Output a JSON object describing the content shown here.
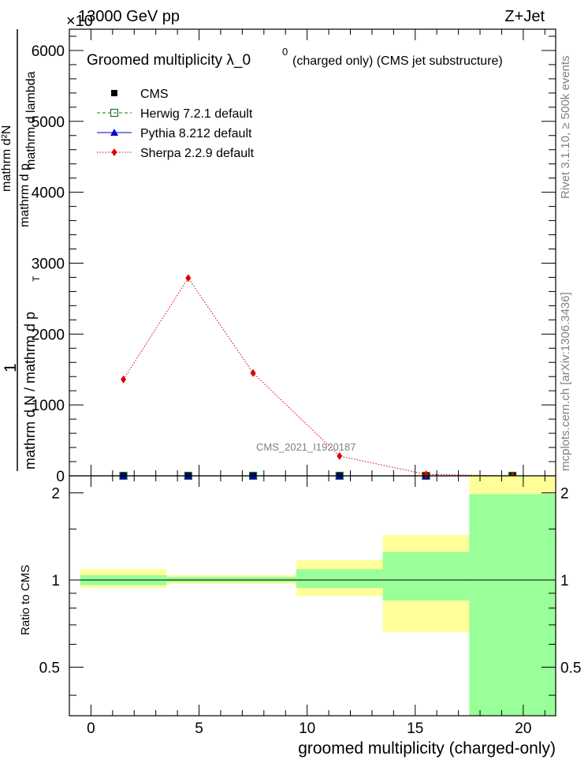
{
  "header": {
    "left": "13000 GeV pp",
    "right": "Z+Jet",
    "exponent": "×10"
  },
  "side": {
    "rivet": "Rivet 3.1.10, ≥ 500k events",
    "mcplots": "mcplots.cern.ch [arXiv:1306.3436]"
  },
  "chart_data": [
    {
      "type": "line",
      "title": "Groomed multiplicity  λ_0",
      "title_sup": "0",
      "title_rest": "(charged only) (CMS jet substructure)",
      "ylabel_num": "1",
      "ylabel_den": "mathrm d N / mathrm d p",
      "ylabel_sub": "T",
      "ylabel_d2_num": "mathrm d²N",
      "ylabel_d2_den": "mathrm d p",
      "ylabel_d2_tail": "mathrm d lambda",
      "ylim": [
        0,
        6300
      ],
      "yticks": [
        0,
        1000,
        2000,
        3000,
        4000,
        5000,
        6000
      ],
      "ytick_labels": [
        "0",
        "1000",
        "2000",
        "3000",
        "4000",
        "5000",
        "6000"
      ],
      "xlim": [
        -1,
        21.5
      ],
      "x": [
        1.5,
        4.5,
        7.5,
        11.5,
        15.5,
        19.5
      ],
      "series": [
        {
          "name": "CMS",
          "marker": "square",
          "color": "#000000",
          "values": [
            0,
            0,
            0,
            0,
            0,
            0
          ]
        },
        {
          "name": "Herwig 7.2.1 default",
          "marker": "open-square",
          "color": "#1a7a1a",
          "values": [
            0,
            0,
            0,
            0,
            0,
            0
          ]
        },
        {
          "name": "Pythia 8.212 default",
          "marker": "triangle",
          "color": "#0000cc",
          "values": [
            0,
            0,
            0,
            0,
            0,
            0
          ]
        },
        {
          "name": "Sherpa 2.2.9 default",
          "marker": "diamond",
          "color": "#dd0000",
          "values": [
            1360,
            2790,
            1450,
            280,
            20,
            0
          ]
        }
      ],
      "watermark": "CMS_2021_I1920187"
    },
    {
      "type": "area",
      "ylabel": "Ratio to CMS",
      "xlabel": "groomed multiplicity (charged-only)",
      "ylim": [
        0.34,
        2.29
      ],
      "yticks": [
        0.5,
        1,
        2
      ],
      "ytick_labels": [
        "0.5",
        "1",
        "2"
      ],
      "xticks": [
        0,
        5,
        10,
        15,
        20
      ],
      "xtick_labels": [
        "0",
        "5",
        "10",
        "15",
        "20"
      ],
      "xlim": [
        -1,
        21.5
      ],
      "bins": [
        {
          "lo": -0.5,
          "hi": 3.5,
          "stat": [
            0.96,
            1.04
          ],
          "total": [
            0.94,
            1.09
          ]
        },
        {
          "lo": 3.5,
          "hi": 9.5,
          "stat": [
            0.985,
            1.025
          ],
          "total": [
            0.97,
            1.04
          ]
        },
        {
          "lo": 9.5,
          "hi": 13.5,
          "stat": [
            0.94,
            1.09
          ],
          "total": [
            0.88,
            1.17
          ]
        },
        {
          "lo": 13.5,
          "hi": 17.5,
          "stat": [
            0.85,
            1.25
          ],
          "total": [
            0.66,
            1.43
          ]
        },
        {
          "lo": 17.5,
          "hi": 21.5,
          "stat": [
            0.34,
            1.98
          ],
          "total": [
            0.34,
            2.29
          ]
        }
      ],
      "colors": {
        "stat": "#99ff99",
        "total": "#ffff99"
      }
    }
  ]
}
